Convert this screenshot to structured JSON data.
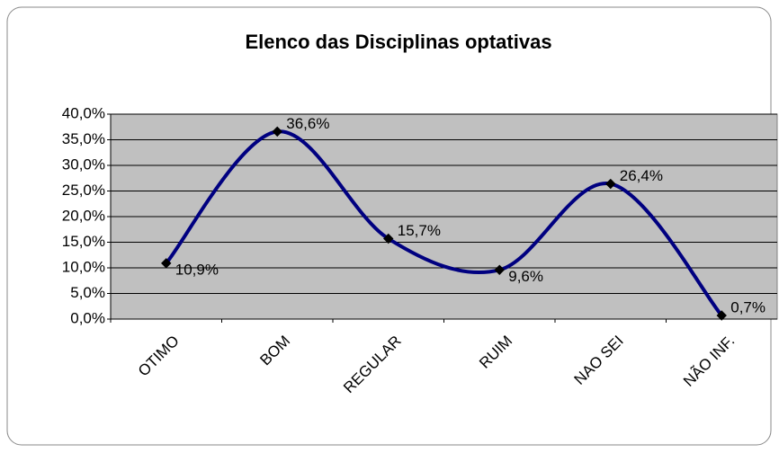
{
  "chart_data": {
    "type": "line",
    "title": "Elenco das Disciplinas optativas",
    "categories": [
      "OTIMO",
      "BOM",
      "REGULAR",
      "RUIM",
      "NAO SEI",
      "NÃO INF."
    ],
    "series": [
      {
        "name": "Elenco das Disciplinas optativas",
        "color": "#000080",
        "values": [
          10.9,
          36.6,
          15.7,
          9.6,
          26.4,
          0.7
        ],
        "value_labels": [
          "10,9%",
          "36,6%",
          "15,7%",
          "9,6%",
          "26,4%",
          "0,7%"
        ]
      }
    ],
    "ylim": [
      0,
      40
    ],
    "yticks": [
      {
        "value": 0,
        "label": "0,0%"
      },
      {
        "value": 5,
        "label": "5,0%"
      },
      {
        "value": 10,
        "label": "10,0%"
      },
      {
        "value": 15,
        "label": "15,0%"
      },
      {
        "value": 20,
        "label": "20,0%"
      },
      {
        "value": 25,
        "label": "25,0%"
      },
      {
        "value": 30,
        "label": "30,0%"
      },
      {
        "value": 35,
        "label": "35,0%"
      },
      {
        "value": 40,
        "label": "40,0%"
      }
    ],
    "grid": true,
    "smooth": true
  }
}
